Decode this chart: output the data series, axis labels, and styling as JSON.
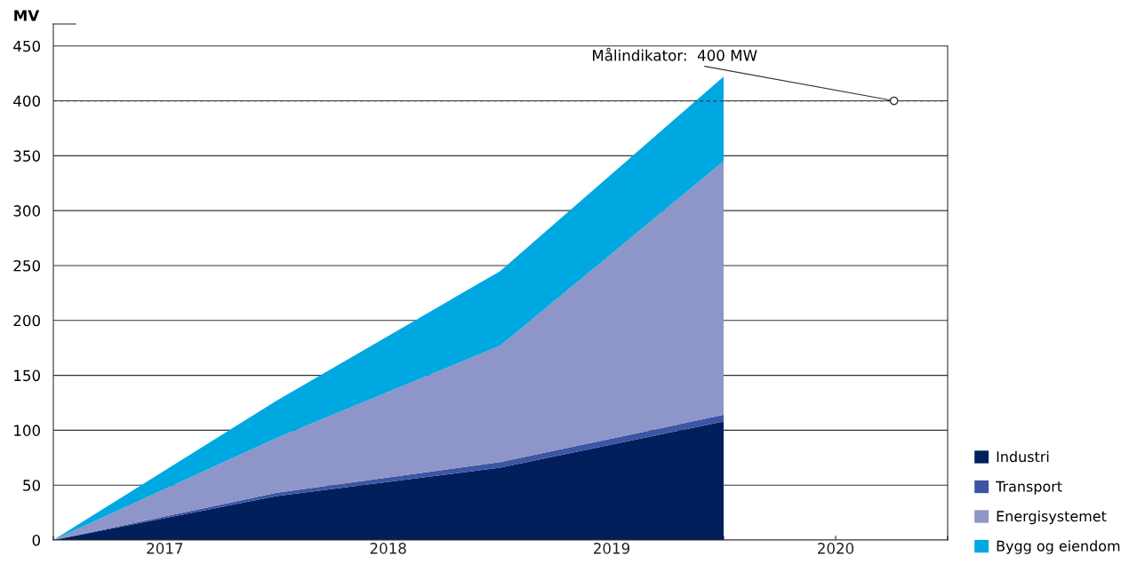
{
  "chart_data": {
    "type": "area",
    "stacked": true,
    "ylabel": "MV",
    "x": [
      "2017-01-01",
      "2018-01-01",
      "2019-01-01",
      "2020-01-01"
    ],
    "series": [
      {
        "name": "Industri",
        "color": "#001f5b",
        "values": [
          0,
          40,
          66,
          108
        ]
      },
      {
        "name": "Transport",
        "color": "#3d55a5",
        "values": [
          0,
          3,
          5,
          6
        ]
      },
      {
        "name": "Energisystemet",
        "color": "#8e95c9",
        "values": [
          0,
          50,
          106,
          231
        ]
      },
      {
        "name": "Bygg og eiendom",
        "color": "#00a8e1",
        "values": [
          0,
          34,
          68,
          77
        ]
      }
    ],
    "xlim": [
      "2017-01-01",
      "2021-01-01"
    ],
    "xticks": [
      {
        "value": "2017-01-01",
        "label": null
      },
      {
        "value": "2017-07-02",
        "label": "2017"
      },
      {
        "value": "2018-01-01",
        "label": null
      },
      {
        "value": "2018-07-02",
        "label": "2018"
      },
      {
        "value": "2019-01-01",
        "label": null
      },
      {
        "value": "2019-07-02",
        "label": "2019"
      },
      {
        "value": "2020-01-01",
        "label": null
      },
      {
        "value": "2020-07-02",
        "label": "2020"
      },
      {
        "value": "2021-01-01",
        "label": null
      }
    ],
    "ylim": [
      0,
      470
    ],
    "yticks": [
      0,
      50,
      100,
      150,
      200,
      250,
      300,
      350,
      400,
      450
    ],
    "grid": "y",
    "legend": "bottom right",
    "ref_lines": [
      {
        "axis": "y",
        "value": 400,
        "label": "Målindikator:  400 MW",
        "color": "#333333",
        "line_style": "dashed"
      }
    ]
  }
}
